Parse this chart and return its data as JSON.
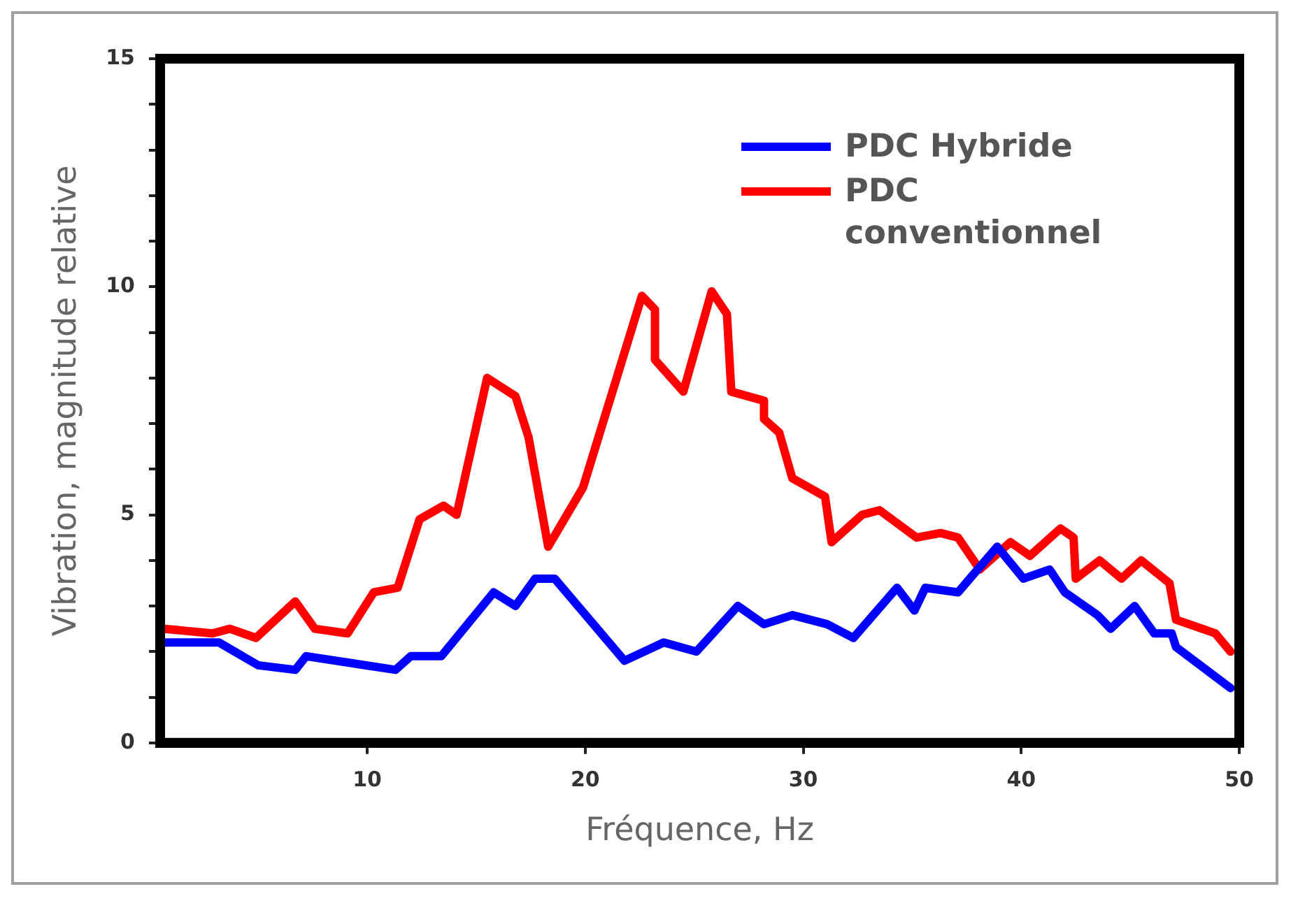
{
  "chart_data": {
    "type": "line",
    "xlabel": "Fréquence, Hz",
    "ylabel": "Vibration, magnitude relative",
    "xlim": [
      0.5,
      50
    ],
    "xticks": [
      10,
      20,
      30,
      40,
      50
    ],
    "ylim": [
      0,
      15
    ],
    "yticks": [
      0,
      {
        "value": 1,
        "label": null
      },
      {
        "value": 2,
        "label": null
      },
      {
        "value": 3,
        "label": null
      },
      {
        "value": 4,
        "label": null
      },
      5,
      {
        "value": 6,
        "label": null
      },
      {
        "value": 7,
        "label": null
      },
      {
        "value": 8,
        "label": null
      },
      {
        "value": 9,
        "label": null
      },
      10,
      {
        "value": 11,
        "label": null
      },
      {
        "value": 12,
        "label": null
      },
      {
        "value": 13,
        "label": null
      },
      {
        "value": 14,
        "label": null
      },
      15
    ],
    "grid": false,
    "legend": "top right",
    "marker": "none",
    "line_style": "solid",
    "series": [
      {
        "name": "PDC Hybride",
        "color": "#0000ff",
        "x": [
          0.7,
          3.2,
          5.0,
          6.7,
          7.2,
          11.3,
          12.0,
          13.4,
          15.8,
          16.8,
          17.7,
          18.6,
          21.8,
          23.6,
          25.1,
          27.0,
          28.2,
          29.5,
          31.1,
          32.3,
          34.3,
          35.1,
          35.6,
          37.1,
          38.9,
          40.1,
          41.3,
          42.0,
          43.5,
          44.1,
          45.2,
          46.1,
          46.9,
          47.1,
          49.6
        ],
        "values": [
          2.2,
          2.2,
          1.7,
          1.6,
          1.9,
          1.6,
          1.9,
          1.9,
          3.3,
          3.0,
          3.6,
          3.6,
          1.8,
          2.2,
          2.0,
          3.0,
          2.6,
          2.8,
          2.6,
          2.3,
          3.4,
          2.9,
          3.4,
          3.3,
          4.3,
          3.6,
          3.8,
          3.3,
          2.8,
          2.5,
          3.0,
          2.4,
          2.4,
          2.1,
          1.2
        ]
      },
      {
        "name": "PDC conventionnel",
        "color": "#ff0000",
        "x": [
          0.7,
          2.9,
          3.7,
          4.9,
          6.7,
          7.6,
          9.1,
          10.3,
          11.4,
          12.4,
          13.5,
          14.1,
          15.5,
          16.8,
          17.4,
          18.3,
          19.9,
          22.6,
          23.2,
          23.2,
          24.5,
          25.8,
          26.5,
          26.7,
          28.2,
          28.2,
          28.9,
          29.5,
          31.0,
          31.3,
          32.7,
          33.5,
          35.2,
          36.3,
          37.1,
          38.1,
          39.5,
          40.4,
          41.8,
          42.4,
          42.5,
          43.6,
          44.6,
          45.5,
          46.8,
          47.1,
          48.9,
          49.6
        ],
        "values": [
          2.5,
          2.4,
          2.5,
          2.3,
          3.1,
          2.5,
          2.4,
          3.3,
          3.4,
          4.9,
          5.2,
          5.0,
          8.0,
          7.6,
          6.7,
          4.3,
          5.6,
          9.8,
          9.5,
          8.4,
          7.7,
          9.9,
          9.4,
          7.7,
          7.5,
          7.1,
          6.8,
          5.8,
          5.4,
          4.4,
          5.0,
          5.1,
          4.5,
          4.6,
          4.5,
          3.8,
          4.4,
          4.1,
          4.7,
          4.5,
          3.6,
          4.0,
          3.6,
          4.0,
          3.5,
          2.7,
          2.4,
          2.0
        ]
      }
    ]
  }
}
